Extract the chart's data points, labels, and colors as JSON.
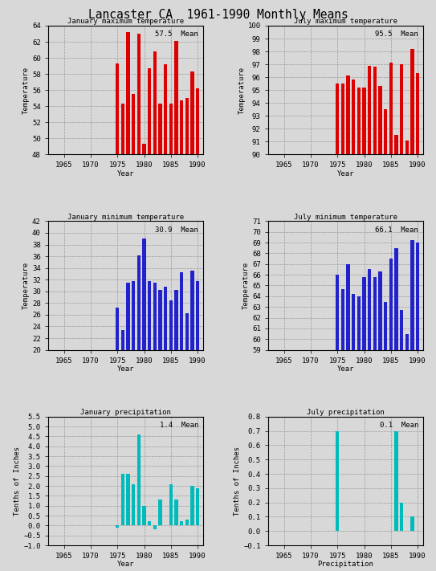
{
  "title": "Lancaster CA  1961-1990 Monthly Means",
  "years": [
    1961,
    1962,
    1963,
    1964,
    1965,
    1966,
    1967,
    1968,
    1969,
    1970,
    1971,
    1972,
    1973,
    1974,
    1975,
    1976,
    1977,
    1978,
    1979,
    1980,
    1981,
    1982,
    1983,
    1984,
    1985,
    1986,
    1987,
    1988,
    1989,
    1990
  ],
  "jan_max": [
    null,
    null,
    null,
    null,
    null,
    null,
    null,
    null,
    null,
    null,
    null,
    null,
    null,
    null,
    59.3,
    54.3,
    63.2,
    55.5,
    63.0,
    49.3,
    58.7,
    60.8,
    54.3,
    59.2,
    54.3,
    62.1,
    54.7,
    55.0,
    58.3,
    56.2
  ],
  "jul_max": [
    null,
    null,
    null,
    null,
    null,
    null,
    null,
    null,
    null,
    null,
    null,
    null,
    null,
    null,
    95.5,
    95.5,
    96.1,
    95.8,
    95.2,
    95.2,
    96.9,
    96.8,
    95.3,
    93.5,
    97.1,
    91.5,
    97.0,
    91.1,
    98.2,
    96.3
  ],
  "jan_min": [
    null,
    null,
    null,
    null,
    null,
    null,
    null,
    null,
    null,
    null,
    null,
    null,
    null,
    null,
    27.2,
    23.4,
    31.5,
    31.8,
    36.2,
    39.1,
    31.8,
    31.5,
    30.2,
    30.8,
    28.5,
    30.3,
    33.2,
    26.3,
    33.5,
    31.8
  ],
  "jul_min": [
    null,
    null,
    null,
    null,
    null,
    null,
    null,
    null,
    null,
    null,
    null,
    null,
    null,
    null,
    66.0,
    64.7,
    67.0,
    64.2,
    64.0,
    65.8,
    66.5,
    65.8,
    66.3,
    63.5,
    67.5,
    68.5,
    62.7,
    60.5,
    69.2,
    69.0
  ],
  "jan_pcp": [
    null,
    null,
    null,
    null,
    null,
    null,
    null,
    null,
    null,
    null,
    null,
    null,
    null,
    null,
    -0.1,
    2.6,
    2.6,
    2.1,
    4.6,
    1.0,
    0.2,
    -0.2,
    1.3,
    0.0,
    2.1,
    1.3,
    0.2,
    0.3,
    2.0,
    1.9
  ],
  "jul_pcp": [
    null,
    null,
    null,
    null,
    null,
    null,
    null,
    null,
    null,
    null,
    null,
    null,
    null,
    null,
    0.7,
    0.0,
    0.0,
    0.0,
    0.0,
    0.0,
    0.0,
    0.0,
    0.0,
    0.0,
    0.0,
    0.7,
    0.2,
    0.0,
    0.1,
    0.0
  ],
  "jan_max_mean": 57.5,
  "jul_max_mean": 95.5,
  "jan_min_mean": 30.9,
  "jul_min_mean": 66.1,
  "jan_pcp_mean": 1.4,
  "jul_pcp_mean": 0.1,
  "bar_color_red": "#DD0000",
  "bar_color_blue": "#2222CC",
  "bar_color_cyan": "#00BBBB",
  "bg_color": "#D8D8D8",
  "grid_color": "#999999",
  "xlim": [
    1962.0,
    1991.0
  ],
  "jan_max_ylim": [
    48,
    64
  ],
  "jul_max_ylim": [
    90,
    100
  ],
  "jan_min_ylim": [
    20,
    42
  ],
  "jul_min_ylim": [
    59,
    71
  ],
  "jan_pcp_ylim": [
    -1.0,
    5.5
  ],
  "jul_pcp_ylim": [
    -0.1,
    0.8
  ],
  "jan_max_yticks": [
    48,
    50,
    52,
    54,
    56,
    58,
    60,
    62,
    64
  ],
  "jul_max_yticks": [
    90,
    91,
    92,
    93,
    94,
    95,
    96,
    97,
    98,
    99,
    100
  ],
  "jan_min_yticks": [
    20,
    22,
    24,
    26,
    28,
    30,
    32,
    34,
    36,
    38,
    40,
    42
  ],
  "jul_min_yticks": [
    59,
    60,
    61,
    62,
    63,
    64,
    65,
    66,
    67,
    68,
    69,
    70,
    71
  ],
  "jan_pcp_yticks": [
    -1.0,
    -0.5,
    0.0,
    0.5,
    1.0,
    1.5,
    2.0,
    2.5,
    3.0,
    3.5,
    4.0,
    4.5,
    5.0,
    5.5
  ],
  "jul_pcp_yticks": [
    -0.1,
    0.0,
    0.1,
    0.2,
    0.3,
    0.4,
    0.5,
    0.6,
    0.7,
    0.8
  ],
  "xticks": [
    1965,
    1970,
    1975,
    1980,
    1985,
    1990
  ]
}
